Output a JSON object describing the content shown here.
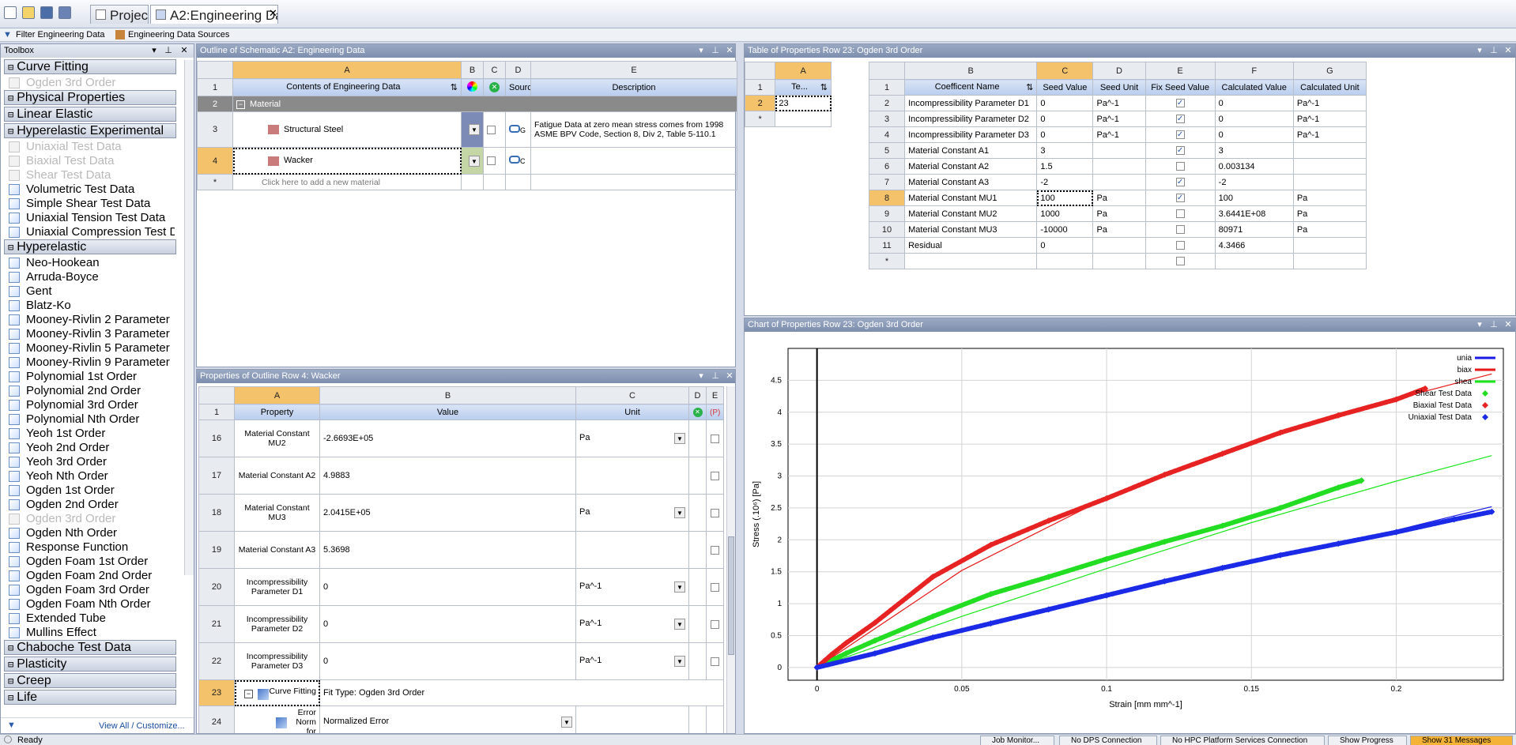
{
  "tabs": [
    {
      "label": "Project"
    },
    {
      "label": "A2:Engineering Data"
    }
  ],
  "toolbar": {
    "filter_label": "Filter Engineering Data",
    "sources_label": "Engineering Data Sources"
  },
  "toolbox": {
    "title": "Toolbox",
    "entries": [
      {
        "kind": "head",
        "label": "Curve Fitting"
      },
      {
        "kind": "item",
        "label": "Ogden 3rd Order",
        "dim": true
      },
      {
        "kind": "head",
        "label": "Physical Properties"
      },
      {
        "kind": "head",
        "label": "Linear Elastic"
      },
      {
        "kind": "head",
        "label": "Hyperelastic Experimental"
      },
      {
        "kind": "item",
        "label": "Uniaxial Test Data",
        "dim": true
      },
      {
        "kind": "item",
        "label": "Biaxial Test Data",
        "dim": true
      },
      {
        "kind": "item",
        "label": "Shear Test Data",
        "dim": true
      },
      {
        "kind": "item",
        "label": "Volumetric Test Data"
      },
      {
        "kind": "item",
        "label": "Simple Shear Test Data"
      },
      {
        "kind": "item",
        "label": "Uniaxial Tension Test Data"
      },
      {
        "kind": "item",
        "label": "Uniaxial Compression Test Data"
      },
      {
        "kind": "head",
        "label": "Hyperelastic"
      },
      {
        "kind": "item",
        "label": "Neo-Hookean"
      },
      {
        "kind": "item",
        "label": "Arruda-Boyce"
      },
      {
        "kind": "item",
        "label": "Gent"
      },
      {
        "kind": "item",
        "label": "Blatz-Ko"
      },
      {
        "kind": "item",
        "label": "Mooney-Rivlin 2 Parameter"
      },
      {
        "kind": "item",
        "label": "Mooney-Rivlin 3 Parameter"
      },
      {
        "kind": "item",
        "label": "Mooney-Rivlin 5 Parameter"
      },
      {
        "kind": "item",
        "label": "Mooney-Rivlin 9 Parameter"
      },
      {
        "kind": "item",
        "label": "Polynomial 1st Order"
      },
      {
        "kind": "item",
        "label": "Polynomial 2nd Order"
      },
      {
        "kind": "item",
        "label": "Polynomial 3rd Order"
      },
      {
        "kind": "item",
        "label": "Polynomial Nth Order"
      },
      {
        "kind": "item",
        "label": "Yeoh 1st Order"
      },
      {
        "kind": "item",
        "label": "Yeoh 2nd Order"
      },
      {
        "kind": "item",
        "label": "Yeoh 3rd Order"
      },
      {
        "kind": "item",
        "label": "Yeoh Nth Order"
      },
      {
        "kind": "item",
        "label": "Ogden 1st Order"
      },
      {
        "kind": "item",
        "label": "Ogden 2nd Order"
      },
      {
        "kind": "item",
        "label": "Ogden 3rd Order",
        "dim": true
      },
      {
        "kind": "item",
        "label": "Ogden Nth Order"
      },
      {
        "kind": "item",
        "label": "Response Function"
      },
      {
        "kind": "item",
        "label": "Ogden Foam 1st Order"
      },
      {
        "kind": "item",
        "label": "Ogden Foam 2nd Order"
      },
      {
        "kind": "item",
        "label": "Ogden Foam 3rd Order"
      },
      {
        "kind": "item",
        "label": "Ogden Foam Nth Order"
      },
      {
        "kind": "item",
        "label": "Extended Tube"
      },
      {
        "kind": "item",
        "label": "Mullins Effect"
      },
      {
        "kind": "head",
        "label": "Chaboche Test Data"
      },
      {
        "kind": "head",
        "label": "Plasticity"
      },
      {
        "kind": "head",
        "label": "Creep"
      },
      {
        "kind": "head",
        "label": "Life"
      }
    ],
    "footer_link": "View All / Customize..."
  },
  "outline": {
    "title": "Outline of Schematic A2: Engineering Data",
    "col_letters": [
      "A",
      "B",
      "C",
      "D",
      "E"
    ],
    "headers": {
      "a": "Contents of Engineering Data",
      "d": "Source",
      "e": "Description"
    },
    "section": "Material",
    "rows": [
      {
        "num": "3",
        "name": "Structural Steel",
        "desc": "Fatigue Data at zero mean stress comes from 1998 ASME BPV Code, Section 8, Div 2, Table 5-110.1"
      },
      {
        "num": "4",
        "name": "Wacker",
        "desc": ""
      }
    ],
    "add_row": "Click here to add a new material"
  },
  "props": {
    "title": "Properties of Outline Row 4: Wacker",
    "col_letters": [
      "A",
      "B",
      "C",
      "D",
      "E"
    ],
    "headers": {
      "a": "Property",
      "b": "Value",
      "c": "Unit"
    },
    "rows": [
      {
        "num": "16",
        "prop": "Material Constant MU2",
        "value": "-2.6693E+05",
        "unit": "Pa"
      },
      {
        "num": "17",
        "prop": "Material Constant A2",
        "value": "4.9883",
        "unit": ""
      },
      {
        "num": "18",
        "prop": "Material Constant MU3",
        "value": "2.0415E+05",
        "unit": "Pa"
      },
      {
        "num": "19",
        "prop": "Material Constant A3",
        "value": "5.3698",
        "unit": ""
      },
      {
        "num": "20",
        "prop": "Incompressibility Parameter D1",
        "value": "0",
        "unit": "Pa^-1"
      },
      {
        "num": "21",
        "prop": "Incompressibility Parameter D2",
        "value": "0",
        "unit": "Pa^-1"
      },
      {
        "num": "22",
        "prop": "Incompressibility Parameter D3",
        "value": "0",
        "unit": "Pa^-1"
      }
    ],
    "row23": {
      "num": "23",
      "prop": "Curve Fitting",
      "value": "Fit Type: Ogden 3rd Order"
    },
    "row24": {
      "num": "24",
      "prop": "Error Norm for",
      "value": "Normalized Error"
    }
  },
  "table": {
    "title": "Table of Properties Row 23: Ogden 3rd Order",
    "left": {
      "col": "A",
      "header": "Te...",
      "value": "23",
      "star": "*"
    },
    "col_letters": [
      "B",
      "C",
      "D",
      "E",
      "F",
      "G"
    ],
    "headers": [
      "Coefficent Name",
      "Seed Value",
      "Seed Unit",
      "Fix Seed Value",
      "Calculated Value",
      "Calculated Unit"
    ],
    "rows": [
      {
        "num": "2",
        "name": "Incompressibility Parameter D1",
        "seed": "0",
        "unit": "Pa^-1",
        "fix": true,
        "calc": "0",
        "cunit": "Pa^-1"
      },
      {
        "num": "3",
        "name": "Incompressibility Parameter D2",
        "seed": "0",
        "unit": "Pa^-1",
        "fix": true,
        "calc": "0",
        "cunit": "Pa^-1"
      },
      {
        "num": "4",
        "name": "Incompressibility Parameter D3",
        "seed": "0",
        "unit": "Pa^-1",
        "fix": true,
        "calc": "0",
        "cunit": "Pa^-1"
      },
      {
        "num": "5",
        "name": "Material Constant A1",
        "seed": "3",
        "unit": "",
        "fix": true,
        "calc": "3",
        "cunit": ""
      },
      {
        "num": "6",
        "name": "Material Constant A2",
        "seed": "1.5",
        "unit": "",
        "fix": false,
        "calc": "0.003134",
        "cunit": ""
      },
      {
        "num": "7",
        "name": "Material Constant A3",
        "seed": "-2",
        "unit": "",
        "fix": true,
        "calc": "-2",
        "cunit": ""
      },
      {
        "num": "8",
        "name": "Material Constant MU1",
        "seed": "100",
        "unit": "Pa",
        "fix": true,
        "calc": "100",
        "cunit": "Pa"
      },
      {
        "num": "9",
        "name": "Material Constant MU2",
        "seed": "1000",
        "unit": "Pa",
        "fix": false,
        "calc": "3.6441E+08",
        "cunit": "Pa"
      },
      {
        "num": "10",
        "name": "Material Constant MU3",
        "seed": "-10000",
        "unit": "Pa",
        "fix": false,
        "calc": "80971",
        "cunit": "Pa"
      },
      {
        "num": "11",
        "name": "Residual",
        "seed": "0",
        "unit": "",
        "fix": false,
        "calc": "4.3466",
        "cunit": ""
      }
    ]
  },
  "chart_panel": {
    "title": "Chart of Properties Row 23: Ogden 3rd Order"
  },
  "chart_data": {
    "type": "line",
    "xlabel": "Strain  [mm mm^-1]",
    "ylabel": "Stress  (.10⁶)  [Pa]",
    "xlim": [
      -0.01,
      0.237
    ],
    "ylim": [
      -0.2,
      5.0
    ],
    "xticks": [
      0,
      0.05,
      0.1,
      0.15,
      0.2
    ],
    "yticks": [
      0,
      0.5,
      1,
      1.5,
      2,
      2.5,
      3,
      3.5,
      4,
      4.5
    ],
    "xtick_labels": [
      "0",
      "0.05",
      "0.1",
      "0.15",
      "0.2"
    ],
    "ytick_labels": [
      "0",
      "0.5",
      "1",
      "1.5",
      "2",
      "2.5",
      "3",
      "3.5",
      "4",
      "4.5"
    ],
    "grid": true,
    "legend_position": "top-right",
    "series": [
      {
        "name": "unia",
        "style": "line",
        "color": "#1a1ae6",
        "x": [
          0,
          0.05,
          0.1,
          0.15,
          0.2,
          0.233
        ],
        "y": [
          0,
          0.58,
          1.13,
          1.65,
          2.15,
          2.52
        ]
      },
      {
        "name": "biax",
        "style": "line",
        "color": "#e61a1a",
        "x": [
          0,
          0.05,
          0.1,
          0.15,
          0.2,
          0.233
        ],
        "y": [
          0,
          1.52,
          2.66,
          3.53,
          4.21,
          4.6
        ]
      },
      {
        "name": "shea",
        "style": "line",
        "color": "#1ae61a",
        "x": [
          0,
          0.05,
          0.1,
          0.15,
          0.2,
          0.233
        ],
        "y": [
          0,
          0.8,
          1.55,
          2.27,
          2.92,
          3.32
        ]
      },
      {
        "name": "Shear Test Data",
        "style": "markers",
        "color": "#22dd22",
        "x": [
          0,
          0.01,
          0.02,
          0.04,
          0.06,
          0.08,
          0.1,
          0.12,
          0.14,
          0.16,
          0.18,
          0.188
        ],
        "y": [
          0,
          0.22,
          0.42,
          0.8,
          1.15,
          1.42,
          1.7,
          1.97,
          2.22,
          2.5,
          2.82,
          2.93
        ]
      },
      {
        "name": "Biaxial Test Data",
        "style": "markers",
        "color": "#e62222",
        "x": [
          0,
          0.005,
          0.01,
          0.02,
          0.04,
          0.06,
          0.08,
          0.1,
          0.12,
          0.14,
          0.16,
          0.18,
          0.2,
          0.21
        ],
        "y": [
          0,
          0.2,
          0.38,
          0.7,
          1.42,
          1.92,
          2.3,
          2.65,
          3.02,
          3.35,
          3.68,
          3.95,
          4.2,
          4.37
        ]
      },
      {
        "name": "Uniaxial Test Data",
        "style": "markers",
        "color": "#1a2ae6",
        "x": [
          0,
          0.02,
          0.04,
          0.06,
          0.08,
          0.1,
          0.12,
          0.14,
          0.16,
          0.18,
          0.2,
          0.22,
          0.233
        ],
        "y": [
          0,
          0.22,
          0.47,
          0.69,
          0.91,
          1.13,
          1.35,
          1.56,
          1.76,
          1.94,
          2.12,
          2.32,
          2.44
        ]
      }
    ]
  },
  "status": {
    "ready": "Ready",
    "buttons": [
      "Job Monitor...",
      "No DPS Connection",
      "No HPC Platform Services Connection",
      "Show Progress",
      "Show 31 Messages"
    ]
  }
}
